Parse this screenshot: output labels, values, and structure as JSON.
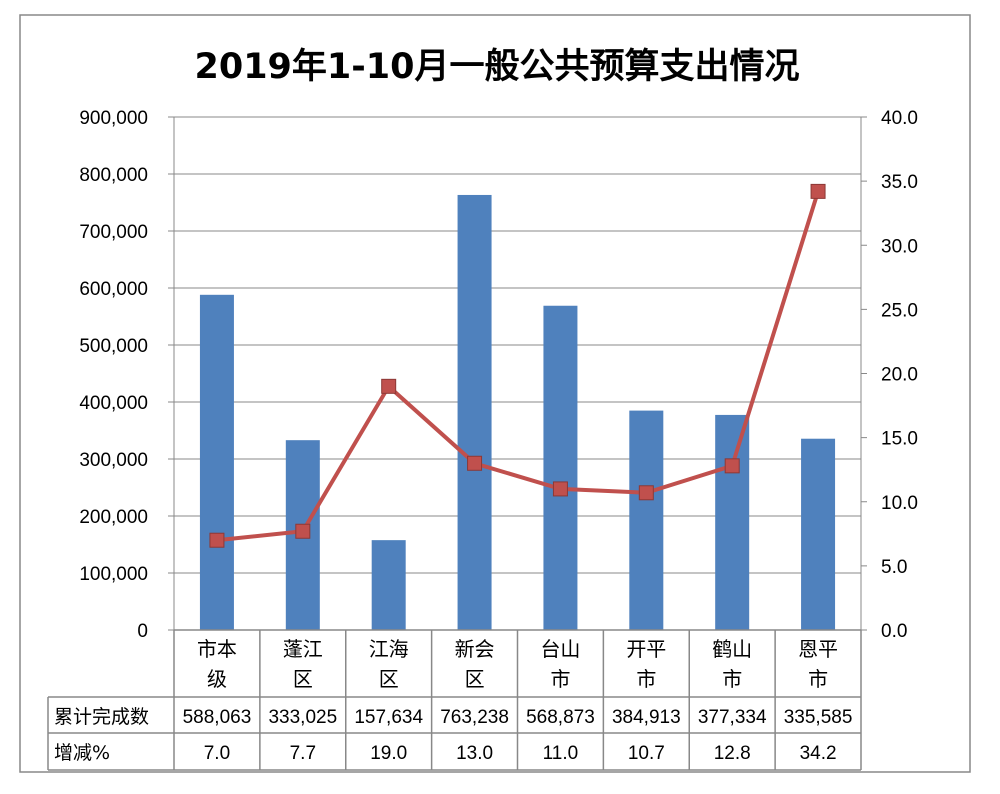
{
  "chart_data": {
    "type": "bar+line",
    "title": "2019年1-10月一般公共预算支出情况",
    "categories": [
      "市本级",
      "蓬江区",
      "江海区",
      "新会区",
      "台山市",
      "开平市",
      "鹤山市",
      "恩平市"
    ],
    "category_labels": [
      [
        "市本",
        "级"
      ],
      [
        "蓬江",
        "区"
      ],
      [
        "江海",
        "区"
      ],
      [
        "新会",
        "区"
      ],
      [
        "台山",
        "市"
      ],
      [
        "开平",
        "市"
      ],
      [
        "鹤山",
        "市"
      ],
      [
        "恩平",
        "市"
      ]
    ],
    "series": [
      {
        "axis": "left",
        "type": "bar",
        "color": "#4F81BD",
        "values": [
          588063,
          333025,
          157634,
          763238,
          568873,
          384913,
          377334,
          335585
        ]
      },
      {
        "axis": "right",
        "type": "line",
        "color": "#C0504D",
        "marker": "square",
        "values": [
          7.0,
          7.7,
          19.0,
          13.0,
          11.0,
          10.7,
          12.8,
          34.2
        ]
      }
    ],
    "y_left": {
      "range": [
        0,
        900000
      ],
      "ticks": [
        "0",
        "100,000",
        "200,000",
        "300,000",
        "400,000",
        "500,000",
        "600,000",
        "700,000",
        "800,000",
        "900,000"
      ]
    },
    "y_right": {
      "range": [
        0,
        40
      ],
      "ticks": [
        "0.0",
        "5.0",
        "10.0",
        "15.0",
        "20.0",
        "25.0",
        "30.0",
        "35.0",
        "40.0"
      ]
    },
    "grid": true,
    "legend": "none",
    "data_table": {
      "row_labels": [
        "累计完成数",
        "增减%"
      ],
      "rows": [
        [
          "588,063",
          "333,025",
          "157,634",
          "763,238",
          "568,873",
          "384,913",
          "377,334",
          "335,585"
        ],
        [
          "7.0",
          "7.7",
          "19.0",
          "13.0",
          "11.0",
          "10.7",
          "12.8",
          "34.2"
        ]
      ]
    }
  }
}
